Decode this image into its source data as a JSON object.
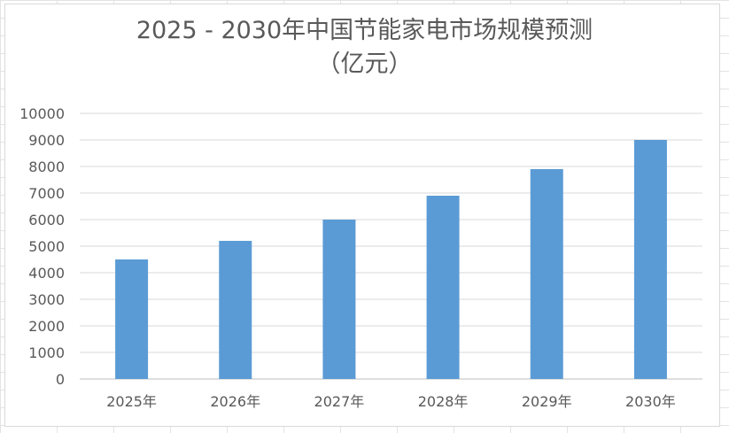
{
  "chart_data": {
    "type": "bar",
    "title": "2025 - 2030年中国节能家电市场规模预测",
    "subtitle": "（亿元）",
    "categories": [
      "2025年",
      "2026年",
      "2027年",
      "2028年",
      "2029年",
      "2030年"
    ],
    "values": [
      4500,
      5200,
      6000,
      6900,
      7900,
      9000
    ],
    "xlabel": "",
    "ylabel": "",
    "ylim": [
      0,
      10000
    ],
    "yticks": [
      0,
      1000,
      2000,
      3000,
      4000,
      5000,
      6000,
      7000,
      8000,
      9000,
      10000
    ],
    "grid": true,
    "legend": "none",
    "bar_color": "#5b9bd5"
  }
}
